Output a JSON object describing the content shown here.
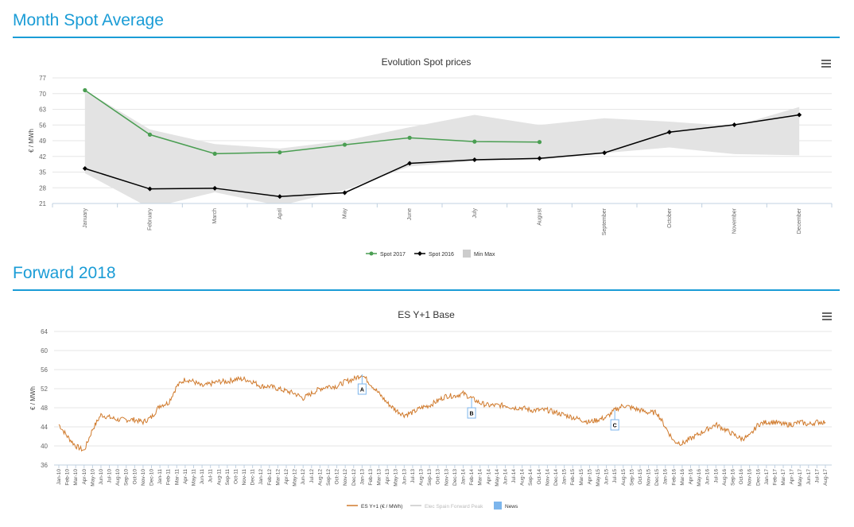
{
  "sections": {
    "monthly_title": "Month Spot Average",
    "forward_title": "Forward 2018"
  },
  "colors": {
    "accent": "#1a9cd6",
    "spot2017": "#4a9e52",
    "spot2016": "#000000",
    "minmax": "#e3e3e3",
    "forward": "#d07a2c",
    "peak": "#c8c8c8",
    "news": "#7cb5ec"
  },
  "icons": {
    "chart_menu": "hamburger-menu-icon"
  },
  "chart_data": [
    {
      "type": "line",
      "title": "Evolution Spot prices",
      "ylabel": "€ / MWh",
      "xlabel": "",
      "ylim": [
        21,
        77
      ],
      "yticks": [
        21,
        28,
        35,
        42,
        49,
        56,
        63,
        70,
        77
      ],
      "grid": true,
      "legend_position": "bottom-center",
      "categories": [
        "January",
        "February",
        "March",
        "April",
        "May",
        "June",
        "July",
        "August",
        "September",
        "October",
        "November",
        "December"
      ],
      "series": [
        {
          "name": "Spot 2017",
          "type": "line",
          "values": [
            71.5,
            51.7,
            43.2,
            43.8,
            47.2,
            50.3,
            48.6,
            48.4,
            null,
            null,
            null,
            null
          ]
        },
        {
          "name": "Spot 2016",
          "type": "line",
          "values": [
            36.6,
            27.5,
            27.8,
            24.1,
            25.8,
            38.9,
            40.5,
            41.1,
            43.6,
            52.8,
            56.1,
            60.5
          ]
        },
        {
          "name": "Min Max",
          "type": "arearange",
          "low": [
            34.5,
            19.0,
            26.0,
            20.0,
            27.0,
            37.5,
            40.0,
            40.5,
            43.5,
            46.0,
            43.0,
            42.5
          ],
          "high": [
            71.5,
            54.0,
            47.5,
            45.5,
            49.0,
            55.0,
            60.5,
            56.0,
            59.0,
            57.5,
            55.5,
            64.0
          ]
        }
      ]
    },
    {
      "type": "line",
      "title": "ES Y+1 Base",
      "ylabel": "€ / MWh",
      "xlabel": "",
      "ylim": [
        36,
        64
      ],
      "yticks": [
        36,
        40,
        44,
        48,
        52,
        56,
        60,
        64
      ],
      "grid": true,
      "legend_position": "bottom-center",
      "x_start": "Jan-10",
      "x_end": "Aug-17",
      "xticks": [
        "Jan-10",
        "Feb-10",
        "Mar-10",
        "Apr-10",
        "May-10",
        "Jun-10",
        "Jul-10",
        "Aug-10",
        "Sep-10",
        "Oct-10",
        "Nov-10",
        "Dec-10",
        "Jan-11",
        "Feb-11",
        "Mar-11",
        "Apr-11",
        "May-11",
        "Jun-11",
        "Jul-11",
        "Aug-11",
        "Sep-11",
        "Oct-11",
        "Nov-11",
        "Dec-11",
        "Jan-12",
        "Feb-12",
        "Mar-12",
        "Apr-12",
        "May-12",
        "Jun-12",
        "Jul-12",
        "Aug-12",
        "Sep-12",
        "Oct-12",
        "Nov-12",
        "Dec-12",
        "Jan-13",
        "Feb-13",
        "Mar-13",
        "Apr-13",
        "May-13",
        "Jun-13",
        "Jul-13",
        "Aug-13",
        "Sep-13",
        "Oct-13",
        "Nov-13",
        "Dec-13",
        "Jan-14",
        "Feb-14",
        "Mar-14",
        "Apr-14",
        "May-14",
        "Jun-14",
        "Jul-14",
        "Aug-14",
        "Sep-14",
        "Oct-14",
        "Nov-14",
        "Dec-14",
        "Jan-15",
        "Feb-15",
        "Mar-15",
        "Apr-15",
        "May-15",
        "Jun-15",
        "Jul-15",
        "Aug-15",
        "Sep-15",
        "Oct-15",
        "Nov-15",
        "Dec-15",
        "Jan-16",
        "Feb-16",
        "Mar-16",
        "Apr-16",
        "May-16",
        "Jun-16",
        "Jul-16",
        "Aug-16",
        "Sep-16",
        "Oct-16",
        "Nov-16",
        "Dec-16",
        "Jan-17",
        "Feb-17",
        "Mar-17",
        "Apr-17",
        "May-17",
        "Jun-17",
        "Jul-17",
        "Aug-17"
      ],
      "series": [
        {
          "name": "ES Y+1 (€ / MWh)",
          "type": "line",
          "x": [
            "Jan-10",
            "Feb-10",
            "Mar-10",
            "Apr-10",
            "May-10",
            "Jun-10",
            "Jul-10",
            "Aug-10",
            "Sep-10",
            "Oct-10",
            "Nov-10",
            "Dec-10",
            "Jan-11",
            "Feb-11",
            "Mar-11",
            "Apr-11",
            "May-11",
            "Jun-11",
            "Jul-11",
            "Aug-11",
            "Sep-11",
            "Oct-11",
            "Nov-11",
            "Dec-11",
            "Jan-12",
            "Feb-12",
            "Mar-12",
            "Apr-12",
            "May-12",
            "Jun-12",
            "Jul-12",
            "Aug-12",
            "Sep-12",
            "Oct-12",
            "Nov-12",
            "Dec-12",
            "Jan-13",
            "Feb-13",
            "Mar-13",
            "Apr-13",
            "May-13",
            "Jun-13",
            "Jul-13",
            "Aug-13",
            "Sep-13",
            "Oct-13",
            "Nov-13",
            "Dec-13",
            "Jan-14",
            "Feb-14",
            "Mar-14",
            "Apr-14",
            "May-14",
            "Jun-14",
            "Jul-14",
            "Aug-14",
            "Sep-14",
            "Oct-14",
            "Nov-14",
            "Dec-14",
            "Jan-15",
            "Feb-15",
            "Mar-15",
            "Apr-15",
            "May-15",
            "Jun-15",
            "Jul-15",
            "Aug-15",
            "Sep-15",
            "Oct-15",
            "Nov-15",
            "Dec-15",
            "Jan-16",
            "Feb-16",
            "Mar-16",
            "Apr-16",
            "May-16",
            "Jun-16",
            "Jul-16",
            "Aug-16",
            "Sep-16",
            "Oct-16",
            "Nov-16",
            "Dec-16",
            "Jan-17",
            "Feb-17",
            "Mar-17",
            "Apr-17",
            "May-17",
            "Jun-17",
            "Jul-17",
            "Aug-17"
          ],
          "values": [
            44.5,
            42.0,
            40.0,
            39.0,
            43.5,
            46.5,
            46.0,
            45.5,
            45.5,
            45.5,
            45.0,
            46.0,
            48.5,
            49.0,
            52.5,
            54.0,
            53.5,
            52.5,
            53.0,
            53.5,
            53.5,
            54.0,
            54.0,
            53.5,
            52.5,
            52.5,
            52.0,
            51.5,
            51.0,
            50.0,
            51.0,
            52.0,
            52.5,
            52.5,
            53.5,
            54.0,
            55.0,
            53.0,
            51.0,
            49.0,
            47.5,
            46.5,
            47.0,
            48.0,
            48.5,
            49.5,
            50.5,
            50.5,
            51.0,
            50.0,
            49.0,
            48.5,
            48.5,
            48.5,
            48.0,
            48.0,
            47.5,
            47.5,
            47.5,
            47.0,
            46.5,
            46.0,
            45.5,
            45.0,
            45.5,
            46.0,
            47.5,
            48.5,
            48.0,
            47.5,
            47.0,
            47.0,
            44.0,
            41.0,
            40.5,
            41.5,
            42.5,
            43.5,
            44.5,
            43.5,
            42.5,
            41.5,
            42.0,
            44.5,
            45.0,
            45.0,
            44.5,
            44.5,
            45.0,
            44.5,
            45.0,
            45.0
          ]
        },
        {
          "name": "Elec Spain Forward Peak",
          "type": "line"
        },
        {
          "name": "News",
          "type": "flags"
        }
      ],
      "flags": [
        {
          "label": "A",
          "x": "Jan-13"
        },
        {
          "label": "B",
          "x": "Feb-14"
        },
        {
          "label": "C",
          "x": "Jul-15"
        }
      ]
    }
  ]
}
